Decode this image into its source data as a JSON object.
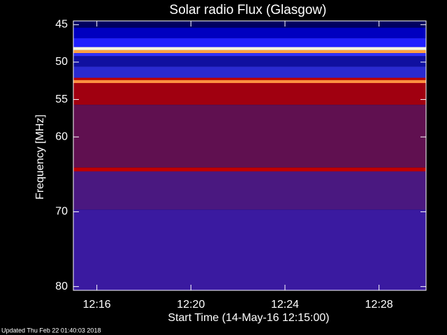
{
  "chart_data": {
    "type": "spectrogram",
    "title": "Solar radio Flux (Glasgow)",
    "x_label": "Start Time (14-May-16 12:15:00)",
    "y_label": "Frequency [MHz]",
    "xlim": [
      15,
      30
    ],
    "xticks": [
      {
        "value": 16,
        "label": "12:16"
      },
      {
        "value": 20,
        "label": "12:20"
      },
      {
        "value": 24,
        "label": "12:24"
      },
      {
        "value": 28,
        "label": "12:28"
      }
    ],
    "ylim": [
      44.5,
      80.5
    ],
    "yticks": [
      45,
      50,
      55,
      60,
      70,
      80
    ],
    "bands": [
      {
        "from": 44.5,
        "to": 45.4,
        "color": "#000060"
      },
      {
        "from": 45.4,
        "to": 46.8,
        "color": "#0000c0"
      },
      {
        "from": 46.8,
        "to": 48.0,
        "color": "#2020ff"
      },
      {
        "from": 48.0,
        "to": 48.4,
        "color": "#ffffe0"
      },
      {
        "from": 48.4,
        "to": 48.8,
        "color": "#ffa040"
      },
      {
        "from": 48.8,
        "to": 49.2,
        "color": "#3030ff"
      },
      {
        "from": 49.2,
        "to": 50.6,
        "color": "#1010a0"
      },
      {
        "from": 50.6,
        "to": 52.1,
        "color": "#2a2ad0"
      },
      {
        "from": 52.1,
        "to": 52.4,
        "color": "#c00000"
      },
      {
        "from": 52.4,
        "to": 52.8,
        "color": "#ff9040"
      },
      {
        "from": 52.8,
        "to": 55.7,
        "color": "#a00010"
      },
      {
        "from": 55.7,
        "to": 64.1,
        "color": "#601050"
      },
      {
        "from": 64.1,
        "to": 64.6,
        "color": "#c00000"
      },
      {
        "from": 64.6,
        "to": 69.7,
        "color": "#4a1880"
      },
      {
        "from": 69.7,
        "to": 80.5,
        "color": "#3a1aa0"
      }
    ],
    "footer": "Updated Thu Feb 22 01:40:03 2018"
  }
}
